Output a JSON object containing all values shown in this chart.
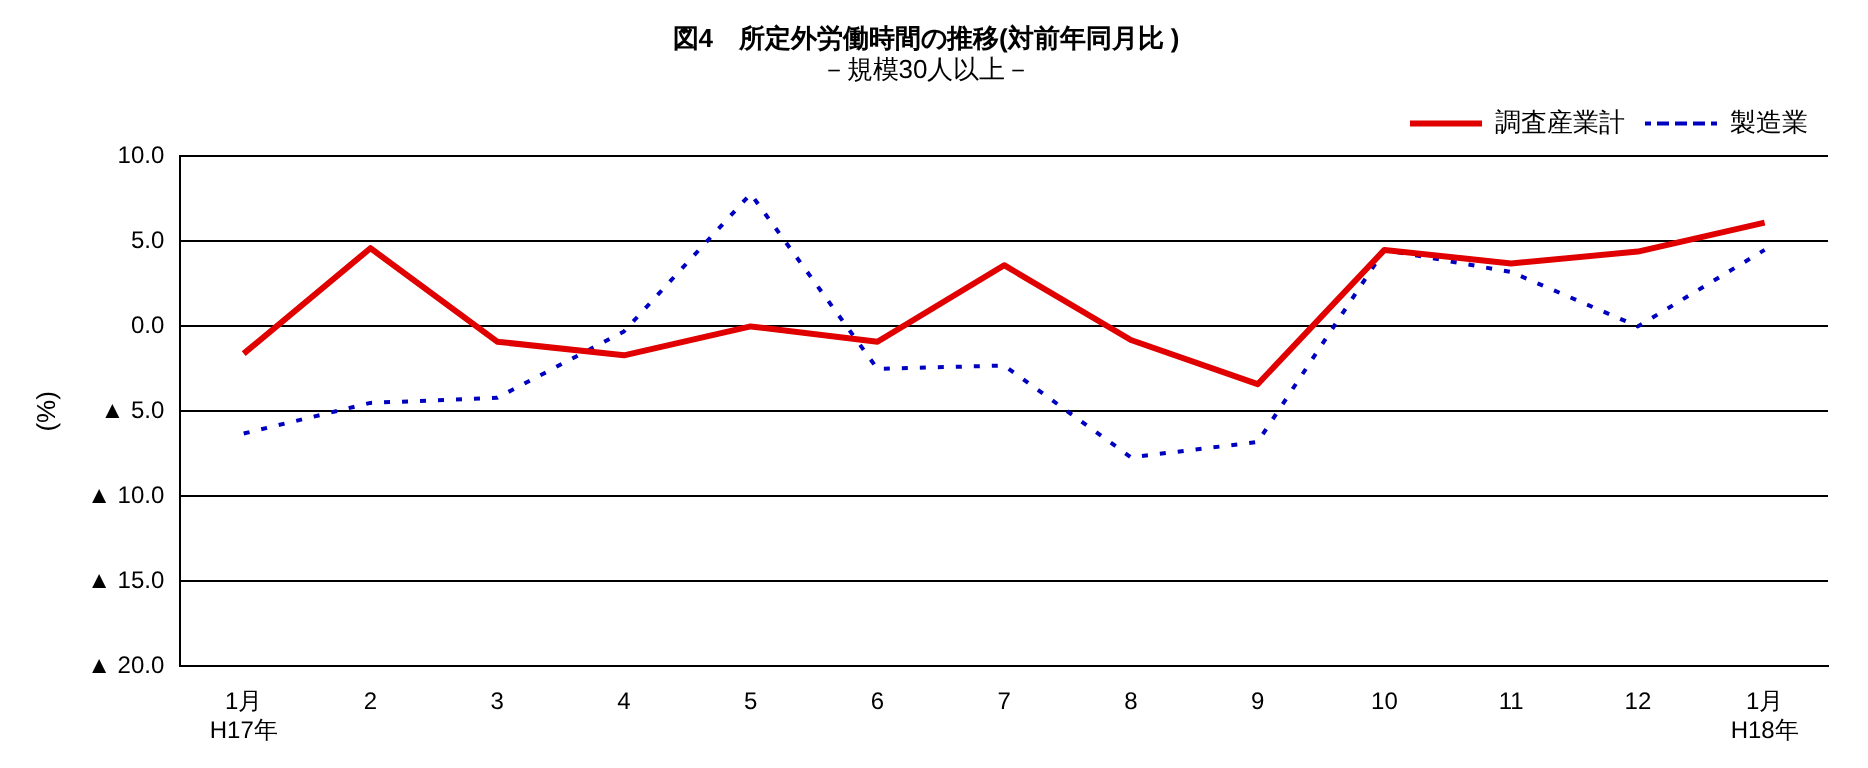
{
  "chart_data": {
    "type": "line",
    "title": "図4　所定外労働時間の推移(対前年同月比 )",
    "subtitle": "－規模30人以上－",
    "ylabel": "(%)",
    "categories": [
      "1月\nH17年",
      "2",
      "3",
      "4",
      "5",
      "6",
      "7",
      "8",
      "9",
      "10",
      "11",
      "12",
      "1月\nH18年"
    ],
    "series": [
      {
        "name": "調査産業計",
        "color": "#e00000",
        "line_style": "solid",
        "values": [
          -1.6,
          4.6,
          -0.9,
          -1.7,
          0,
          -0.9,
          3.6,
          -0.8,
          -3.4,
          4.5,
          3.7,
          4.4,
          6.1
        ]
      },
      {
        "name": "製造業",
        "color": "#0000c0",
        "line_style": "dotted",
        "values": [
          -6.3,
          -4.5,
          -4.2,
          -0.3,
          7.8,
          -2.5,
          -2.3,
          -7.7,
          -6.8,
          4.5,
          3.2,
          0,
          4.5
        ]
      }
    ],
    "ylim": [
      -20,
      10
    ],
    "yticks": [
      {
        "value": -20,
        "label": "▲ 20.0"
      },
      {
        "value": -15,
        "label": "▲ 15.0"
      },
      {
        "value": -10,
        "label": "▲ 10.0"
      },
      {
        "value": -5,
        "label": "▲ 5.0"
      },
      {
        "value": 0,
        "label": "0.0"
      },
      {
        "value": 5,
        "label": "5.0"
      },
      {
        "value": 10,
        "label": "10.0"
      }
    ],
    "grid": "y",
    "legend": "top right",
    "marker": "none"
  }
}
